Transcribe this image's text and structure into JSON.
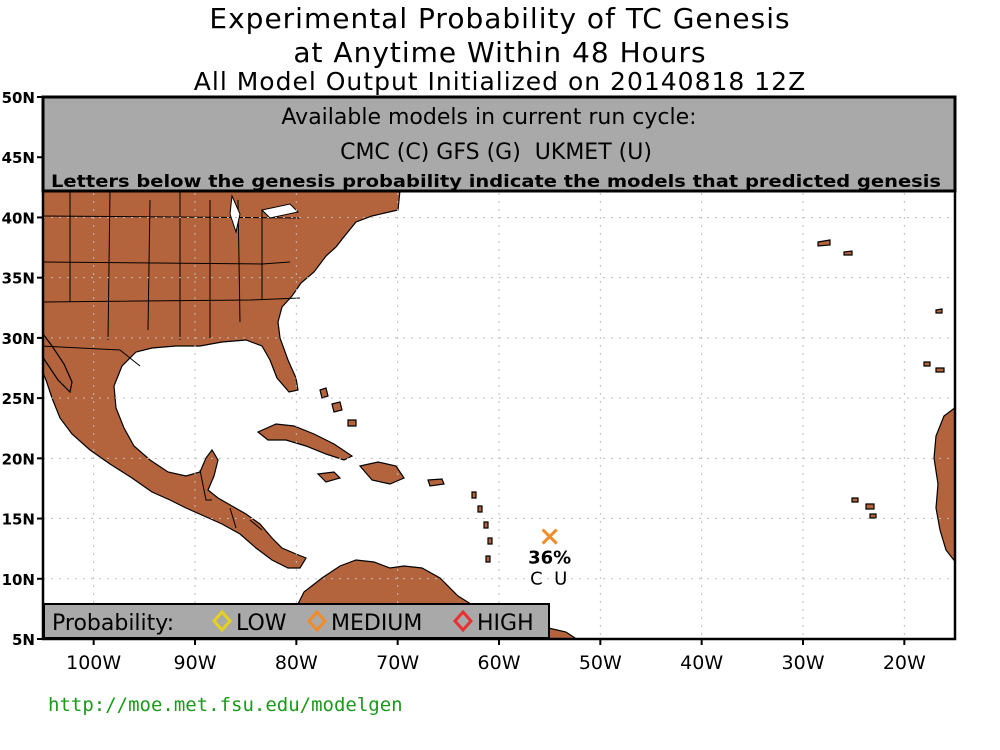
{
  "title": {
    "line1": "Experimental Probability of TC Genesis",
    "line2": "at Anytime Within 48 Hours",
    "line3": "All Model Output Initialized on 20140818 12Z"
  },
  "banner": {
    "heading": "Available models in current run cycle:",
    "models": "CMC (C) GFS (G)  UKMET (U)",
    "note": "Letters below the genesis probability indicate the models that predicted genesis"
  },
  "axes": {
    "lat_labels": [
      "50N",
      "45N",
      "40N",
      "35N",
      "30N",
      "25N",
      "20N",
      "15N",
      "10N",
      "5N"
    ],
    "lon_labels": [
      "100W",
      "90W",
      "80W",
      "70W",
      "60W",
      "50W",
      "40W",
      "30W",
      "20W"
    ],
    "lat_range": [
      5,
      50
    ],
    "lon_range": [
      -105,
      -15
    ],
    "grid": true
  },
  "legend": {
    "label": "Probability:",
    "items": [
      {
        "label": "LOW",
        "color": "#e6d21e",
        "icon": "diamond-icon"
      },
      {
        "label": "MEDIUM",
        "color": "#f08c28",
        "icon": "diamond-icon"
      },
      {
        "label": "HIGH",
        "color": "#e63232",
        "icon": "diamond-icon"
      }
    ]
  },
  "genesis_point": {
    "lat": 13.5,
    "lon": -55,
    "marker": "x-mark-icon",
    "color": "#f08c28",
    "probability": "36%",
    "models": "C  U"
  },
  "colors": {
    "land": "#b4643c",
    "ocean": "#ffffff",
    "banner_bg": "#a9a9a9",
    "url": "#1a9a1a"
  },
  "url": "http://moe.met.fsu.edu/modelgen"
}
